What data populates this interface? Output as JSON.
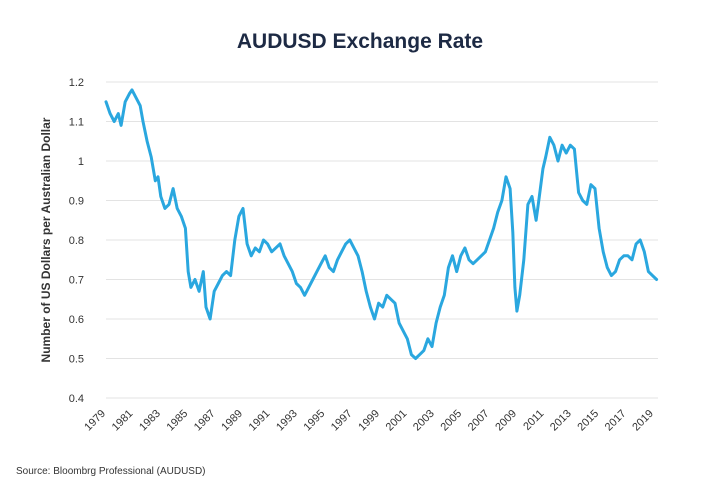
{
  "source_text": "Source: Bloombrg Professional (AUDUSD)",
  "colors": {
    "line": "#2aa7df",
    "grid": "#e3e3e3",
    "title": "#1d2a44",
    "text": "#333333"
  },
  "chart_data": {
    "type": "line",
    "title": "AUDUSD Exchange Rate",
    "xlabel": "",
    "ylabel": "Number of US Dollars per Australian Dollar",
    "xlim": [
      1979,
      2019.3
    ],
    "ylim": [
      0.4,
      1.2
    ],
    "yticks": [
      0.4,
      0.5,
      0.6,
      0.7,
      0.8,
      0.9,
      1.0,
      1.1,
      1.2
    ],
    "ytick_labels": [
      "0.4",
      "0.5",
      "0.6",
      "0.7",
      "0.8",
      "0.9",
      "1",
      "1.1",
      "1.2"
    ],
    "xticks": [
      1979,
      1981,
      1983,
      1985,
      1987,
      1989,
      1991,
      1993,
      1995,
      1997,
      1999,
      2001,
      2003,
      2005,
      2007,
      2009,
      2011,
      2013,
      2015,
      2017,
      2019
    ],
    "xtick_labels": [
      "1979",
      "1981",
      "1983",
      "1985",
      "1987",
      "1989",
      "1991",
      "1993",
      "1995",
      "1997",
      "1999",
      "2001",
      "2003",
      "2005",
      "2007",
      "2009",
      "2011",
      "2013",
      "2015",
      "2017",
      "2019"
    ],
    "grid": "horizontal",
    "legend": "none",
    "series": [
      {
        "name": "AUDUSD",
        "x": [
          1979.0,
          1979.3,
          1979.6,
          1979.9,
          1980.1,
          1980.4,
          1980.7,
          1980.9,
          1981.2,
          1981.5,
          1981.7,
          1982.0,
          1982.3,
          1982.6,
          1982.8,
          1983.0,
          1983.3,
          1983.6,
          1983.9,
          1984.2,
          1984.5,
          1984.8,
          1985.0,
          1985.2,
          1985.5,
          1985.8,
          1986.1,
          1986.3,
          1986.6,
          1986.9,
          1987.2,
          1987.5,
          1987.8,
          1988.1,
          1988.4,
          1988.7,
          1989.0,
          1989.3,
          1989.6,
          1989.9,
          1990.2,
          1990.5,
          1990.8,
          1991.1,
          1991.4,
          1991.7,
          1992.0,
          1992.3,
          1992.6,
          1992.9,
          1993.2,
          1993.5,
          1993.8,
          1994.1,
          1994.4,
          1994.7,
          1995.0,
          1995.3,
          1995.6,
          1995.9,
          1996.2,
          1996.5,
          1996.8,
          1997.1,
          1997.4,
          1997.7,
          1998.0,
          1998.3,
          1998.6,
          1998.9,
          1999.2,
          1999.5,
          1999.8,
          2000.1,
          2000.4,
          2000.7,
          2001.0,
          2001.3,
          2001.6,
          2001.9,
          2002.2,
          2002.5,
          2002.8,
          2003.1,
          2003.4,
          2003.7,
          2004.0,
          2004.3,
          2004.6,
          2004.9,
          2005.2,
          2005.5,
          2005.8,
          2006.1,
          2006.4,
          2006.7,
          2007.0,
          2007.3,
          2007.6,
          2007.9,
          2008.2,
          2008.5,
          2008.7,
          2008.85,
          2009.0,
          2009.2,
          2009.5,
          2009.8,
          2010.1,
          2010.4,
          2010.6,
          2010.9,
          2011.1,
          2011.4,
          2011.7,
          2012.0,
          2012.3,
          2012.6,
          2012.9,
          2013.2,
          2013.5,
          2013.8,
          2014.1,
          2014.4,
          2014.7,
          2015.0,
          2015.3,
          2015.6,
          2015.9,
          2016.2,
          2016.5,
          2016.8,
          2017.1,
          2017.4,
          2017.7,
          2018.0,
          2018.3,
          2018.6,
          2018.9,
          2019.2
        ],
        "y": [
          1.15,
          1.12,
          1.1,
          1.12,
          1.09,
          1.15,
          1.17,
          1.18,
          1.16,
          1.14,
          1.1,
          1.05,
          1.01,
          0.95,
          0.96,
          0.91,
          0.88,
          0.89,
          0.93,
          0.88,
          0.86,
          0.83,
          0.72,
          0.68,
          0.7,
          0.67,
          0.72,
          0.63,
          0.6,
          0.67,
          0.69,
          0.71,
          0.72,
          0.71,
          0.8,
          0.86,
          0.88,
          0.79,
          0.76,
          0.78,
          0.77,
          0.8,
          0.79,
          0.77,
          0.78,
          0.79,
          0.76,
          0.74,
          0.72,
          0.69,
          0.68,
          0.66,
          0.68,
          0.7,
          0.72,
          0.74,
          0.76,
          0.73,
          0.72,
          0.75,
          0.77,
          0.79,
          0.8,
          0.78,
          0.76,
          0.72,
          0.67,
          0.63,
          0.6,
          0.64,
          0.63,
          0.66,
          0.65,
          0.64,
          0.59,
          0.57,
          0.55,
          0.51,
          0.5,
          0.51,
          0.52,
          0.55,
          0.53,
          0.59,
          0.63,
          0.66,
          0.73,
          0.76,
          0.72,
          0.76,
          0.78,
          0.75,
          0.74,
          0.75,
          0.76,
          0.77,
          0.8,
          0.83,
          0.87,
          0.9,
          0.96,
          0.93,
          0.82,
          0.68,
          0.62,
          0.66,
          0.75,
          0.89,
          0.91,
          0.85,
          0.9,
          0.98,
          1.01,
          1.06,
          1.04,
          1.0,
          1.04,
          1.02,
          1.04,
          1.03,
          0.92,
          0.9,
          0.89,
          0.94,
          0.93,
          0.83,
          0.77,
          0.73,
          0.71,
          0.72,
          0.75,
          0.76,
          0.76,
          0.75,
          0.79,
          0.8,
          0.77,
          0.72,
          0.71,
          0.7
        ]
      }
    ]
  }
}
